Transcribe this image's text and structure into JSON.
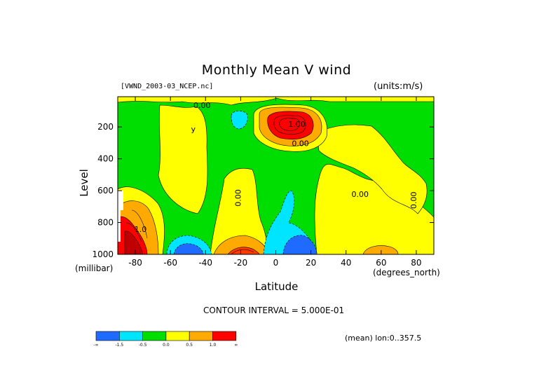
{
  "title": "Monthly Mean V wind",
  "source_label": "[VWND_2003-03_NCEP.nc]",
  "units_label": "(units:m/s)",
  "y_axis": {
    "title": "Level",
    "unit": "(millibar)"
  },
  "x_axis": {
    "title": "Latitude",
    "unit": "(degrees_north)"
  },
  "contour_interval_text": "CONTOUR INTERVAL = 5.000E-01",
  "mean_text": "(mean) lon:0..357.5",
  "colorbar": {
    "colors": [
      "#1f6bff",
      "#00e5ff",
      "#00dd00",
      "#ffff00",
      "#ffaa00",
      "#ff0000"
    ],
    "labels": [
      "-∞",
      "-1.5",
      "-0.5",
      "0.0",
      "0.5",
      "1.0",
      "∞"
    ]
  },
  "contour_labels": [
    {
      "text": "0.00",
      "lat": -20,
      "level": 645,
      "rotated": true
    },
    {
      "text": "0.00",
      "lat": -42,
      "level": 80
    },
    {
      "text": "0.00",
      "lat": 14,
      "level": 320
    },
    {
      "text": "1.00",
      "lat": 12,
      "level": 200
    },
    {
      "text": "0.00",
      "lat": 48,
      "level": 640
    },
    {
      "text": "0.00",
      "lat": 80,
      "level": 660,
      "rotated": true
    },
    {
      "text": "1.0",
      "lat": -77,
      "level": 860
    },
    {
      "text": "y",
      "lat": -47,
      "level": 230
    }
  ],
  "chart_data": {
    "type": "heatmap",
    "title": "Monthly Mean V wind",
    "xlabel": "Latitude",
    "ylabel": "Level",
    "x_range": [
      -90,
      90
    ],
    "y_range": [
      1000,
      10
    ],
    "x_ticks": [
      -80,
      -60,
      -40,
      -20,
      0,
      20,
      40,
      60,
      80
    ],
    "y_ticks": [
      200,
      400,
      600,
      800,
      1000
    ],
    "contour_interval": 0.5,
    "levels": [
      "-∞",
      "-1.5",
      "-0.5",
      "0.0",
      "0.5",
      "1.0",
      "∞"
    ],
    "features": [
      {
        "sign": "positive",
        "lat": -82,
        "level": 880,
        "peak": 1.5
      },
      {
        "sign": "negative",
        "lat": -55,
        "level": 980,
        "peak": -2.0
      },
      {
        "sign": "positive",
        "lat": -22,
        "level": 980,
        "peak": 1.0
      },
      {
        "sign": "negative",
        "lat": 12,
        "level": 960,
        "peak": -2.0
      },
      {
        "sign": "negative",
        "lat": 3,
        "level": 800,
        "peak": -0.8
      },
      {
        "sign": "positive",
        "lat": 12,
        "level": 140,
        "peak": 2.5
      },
      {
        "sign": "negative",
        "lat": -18,
        "level": 150,
        "peak": -0.6
      },
      {
        "sign": "positive",
        "lat": 60,
        "level": 980,
        "peak": 0.6
      },
      {
        "sign": "positive",
        "lat": 62,
        "level": 770,
        "peak": 0.3
      },
      {
        "sign": "positive",
        "lat": -45,
        "level": 260,
        "peak": 0.3
      }
    ]
  }
}
